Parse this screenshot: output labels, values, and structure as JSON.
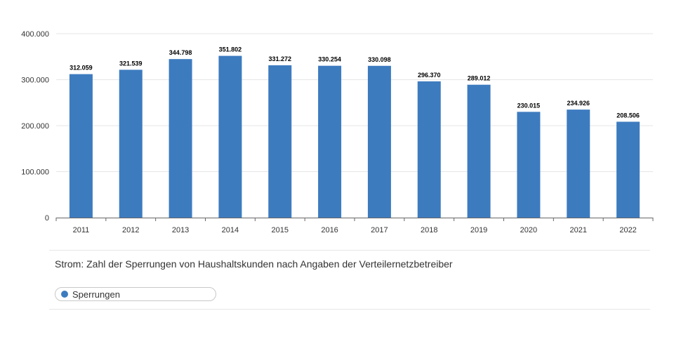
{
  "chart_data": {
    "type": "bar",
    "categories": [
      "2011",
      "2012",
      "2013",
      "2014",
      "2015",
      "2016",
      "2017",
      "2018",
      "2019",
      "2020",
      "2021",
      "2022"
    ],
    "series": [
      {
        "name": "Sperrungen",
        "values": [
          312059,
          321539,
          344798,
          351802,
          331272,
          330254,
          330098,
          296370,
          289012,
          230015,
          234926,
          208506
        ],
        "value_labels": [
          "312.059",
          "321.539",
          "344.798",
          "351.802",
          "331.272",
          "330.254",
          "330.098",
          "296.370",
          "289.012",
          "230.015",
          "234.926",
          "208.506"
        ],
        "color": "#3d7bbf"
      }
    ],
    "title": "Strom: Zahl der Sperrungen von Haushaltskunden nach Angaben der Verteilernetzbetreiber",
    "xlabel": "",
    "ylabel": "",
    "ylim": [
      0,
      400000
    ],
    "yticks": [
      0,
      100000,
      200000,
      300000,
      400000
    ],
    "ytick_labels": [
      "0",
      "100.000",
      "200.000",
      "300.000",
      "400.000"
    ],
    "grid": true,
    "legend_position": "bottom-left"
  },
  "legend": {
    "label": "Sperrungen",
    "color": "#3d7bbf"
  }
}
